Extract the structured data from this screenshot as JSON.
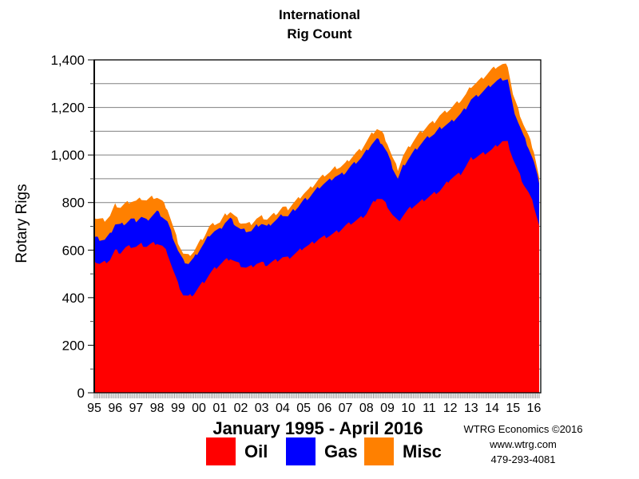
{
  "title": {
    "line1": "International",
    "line2": "Rig Count"
  },
  "subtitle": "January 1995 - April 2016",
  "credits": {
    "line1": "WTRG Economics ©2016",
    "line2": "www.wtrg.com",
    "line3": "479-293-4081"
  },
  "chart_data": {
    "type": "area",
    "stacked": true,
    "title": "International Rig Count",
    "ylabel": "Rotary Rigs",
    "ylim": [
      0,
      1400
    ],
    "grid_step": 100,
    "ytick_step": 200,
    "ytick_labels": [
      "0",
      "200",
      "400",
      "600",
      "800",
      "1,000",
      "1,200",
      "1,400"
    ],
    "x_tick_labels": [
      "95",
      "96",
      "97",
      "98",
      "99",
      "00",
      "01",
      "02",
      "03",
      "04",
      "05",
      "06",
      "07",
      "08",
      "09",
      "10",
      "11",
      "12",
      "13",
      "14",
      "15",
      "16"
    ],
    "x_range": {
      "start": "January 1995",
      "end": "April 2016",
      "points_per_year": 4
    },
    "grid_color": "#808080",
    "axis_color": "#000000",
    "legend_position": "bottom",
    "series": [
      {
        "name": "Oil",
        "color": "#FF0000",
        "values": [
          555,
          542,
          548,
          560,
          598,
          590,
          610,
          616,
          614,
          624,
          616,
          626,
          630,
          616,
          588,
          520,
          458,
          412,
          404,
          416,
          444,
          468,
          498,
          522,
          540,
          556,
          566,
          550,
          536,
          526,
          530,
          544,
          546,
          538,
          550,
          558,
          570,
          566,
          580,
          594,
          612,
          620,
          634,
          648,
          655,
          662,
          672,
          685,
          702,
          714,
          724,
          736,
          754,
          790,
          820,
          812,
          786,
          748,
          720,
          746,
          770,
          786,
          798,
          812,
          825,
          838,
          850,
          872,
          900,
          912,
          922,
          952,
          985,
          992,
          1002,
          1012,
          1022,
          1042,
          1058,
          1052,
          985,
          930,
          880,
          840,
          788,
          705
        ]
      },
      {
        "name": "Gas",
        "color": "#0000FF",
        "values": [
          100,
          104,
          96,
          106,
          112,
          116,
          104,
          114,
          110,
          116,
          108,
          118,
          132,
          126,
          130,
          136,
          140,
          143,
          140,
          148,
          154,
          160,
          166,
          158,
          146,
          160,
          166,
          156,
          150,
          156,
          150,
          158,
          166,
          160,
          166,
          172,
          180,
          176,
          186,
          190,
          196,
          202,
          210,
          218,
          226,
          232,
          238,
          230,
          226,
          238,
          246,
          252,
          262,
          256,
          246,
          238,
          222,
          200,
          180,
          206,
          214,
          226,
          240,
          248,
          254,
          250,
          262,
          252,
          236,
          242,
          250,
          246,
          248,
          254,
          260,
          268,
          276,
          270,
          262,
          266,
          215,
          208,
          200,
          190,
          182,
          175
        ]
      },
      {
        "name": "Misc",
        "color": "#FF8000",
        "values": [
          80,
          84,
          82,
          78,
          80,
          74,
          82,
          76,
          82,
          78,
          85,
          78,
          60,
          62,
          55,
          46,
          36,
          30,
          32,
          30,
          32,
          30,
          35,
          32,
          30,
          32,
          30,
          32,
          30,
          28,
          32,
          30,
          28,
          32,
          30,
          28,
          30,
          32,
          30,
          32,
          30,
          32,
          32,
          34,
          35,
          34,
          36,
          35,
          36,
          35,
          38,
          36,
          40,
          42,
          45,
          44,
          42,
          40,
          40,
          44,
          46,
          48,
          50,
          48,
          50,
          52,
          54,
          56,
          58,
          60,
          58,
          56,
          56,
          58,
          58,
          60,
          62,
          62,
          60,
          58,
          55,
          52,
          50,
          48,
          46,
          25
        ]
      }
    ]
  }
}
